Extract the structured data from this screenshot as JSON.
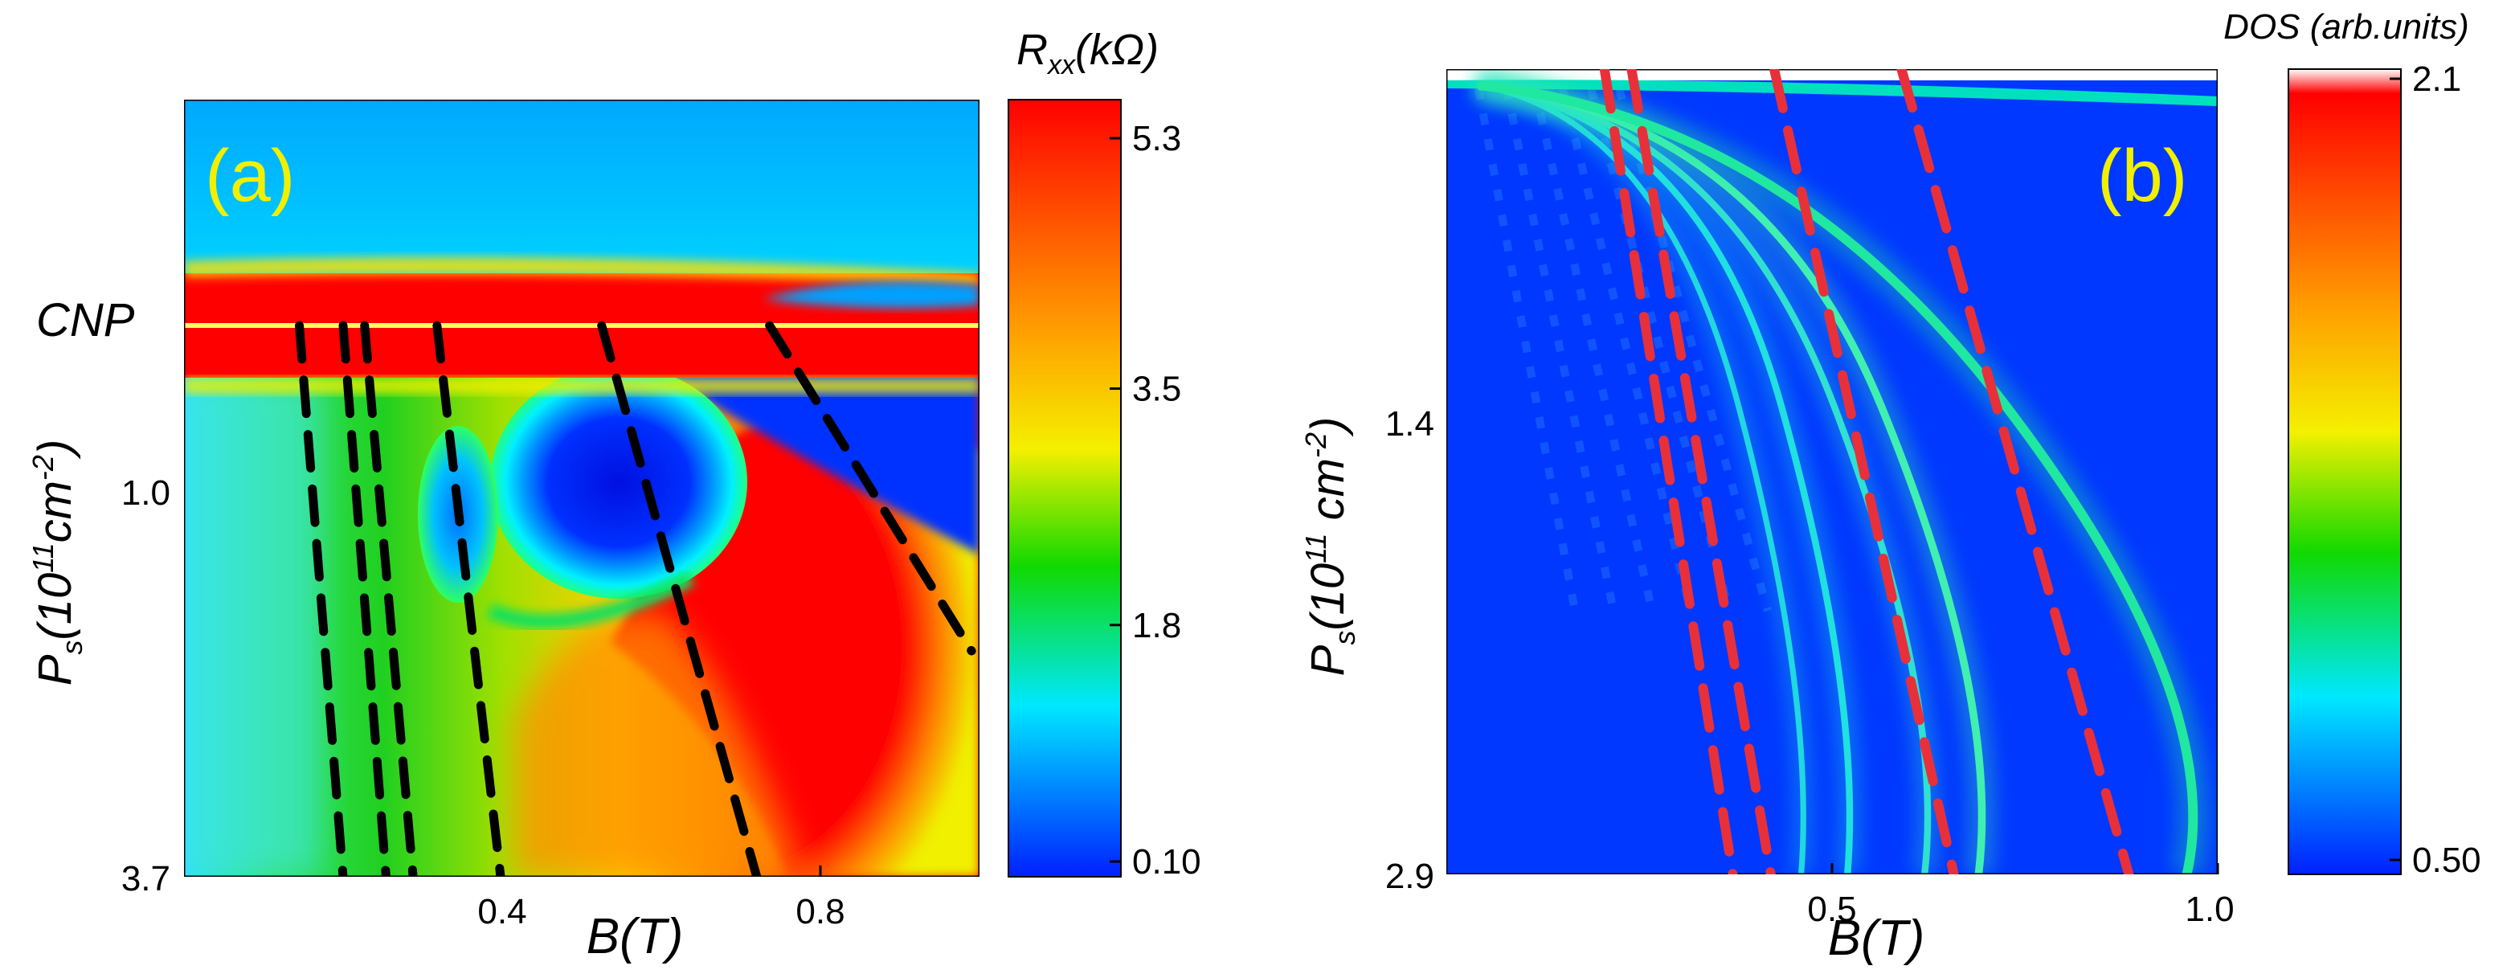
{
  "chart_data": [
    {
      "type": "heatmap",
      "panel_label": "(a)",
      "xlabel": "B(T)",
      "ylabel": "P",
      "ylabel_sub": "s",
      "ylabel_rest": "(10",
      "ylabel_exp": "11",
      "ylabel_unit": "cm",
      "ylabel_unit_exp": "-2",
      "ylabel_close": ")",
      "x_ticks": [
        "0.4",
        "0.8"
      ],
      "x_tick_values": [
        0.4,
        0.8
      ],
      "xlim": [
        0.0,
        1.0
      ],
      "y_ticks": [
        "1.0",
        "3.7"
      ],
      "cnp_label": "CNP",
      "colorbar": {
        "title_main": "R",
        "title_sub": "xx",
        "title_rest": "(kΩ)",
        "ticks": [
          "5.3",
          "3.5",
          "1.8",
          "0.10"
        ],
        "tick_values": [
          5.3,
          3.5,
          1.8,
          0.1
        ],
        "range": [
          0.1,
          5.3
        ]
      },
      "dashed_lines_color": "#000000",
      "dashed_lines": [
        {
          "x": [
            0.145,
            0.2
          ]
        },
        {
          "x": [
            0.2,
            0.254
          ]
        },
        {
          "x": [
            0.227,
            0.288
          ]
        },
        {
          "x": [
            0.318,
            0.398
          ]
        },
        {
          "x": [
            0.525,
            0.72
          ]
        },
        {
          "x": [
            0.736,
            0.99
          ]
        }
      ]
    },
    {
      "type": "heatmap",
      "panel_label": "(b)",
      "xlabel": "B(T)",
      "ylabel": "P",
      "ylabel_sub": "s",
      "ylabel_rest": "(10",
      "ylabel_exp": "11",
      "ylabel_unit": " cm",
      "ylabel_unit_exp": "-2",
      "ylabel_close": ")",
      "x_ticks": [
        "0.5",
        "1.0"
      ],
      "x_tick_values": [
        0.5,
        1.0
      ],
      "xlim": [
        0.0,
        1.0
      ],
      "y_ticks": [
        "1.4",
        "2.9"
      ],
      "colorbar": {
        "title": "DOS (arb.units)",
        "ticks": [
          "2.1",
          "0.50"
        ],
        "tick_values": [
          2.1,
          0.5
        ],
        "range": [
          0.5,
          2.1
        ]
      },
      "dashed_lines_color": "#e8303a",
      "dashed_lines": [
        {
          "x": [
            0.205,
            0.38
          ]
        },
        {
          "x": [
            0.24,
            0.43
          ]
        },
        {
          "x": [
            0.425,
            0.67
          ]
        },
        {
          "x": [
            0.59,
            0.9
          ]
        }
      ]
    }
  ]
}
